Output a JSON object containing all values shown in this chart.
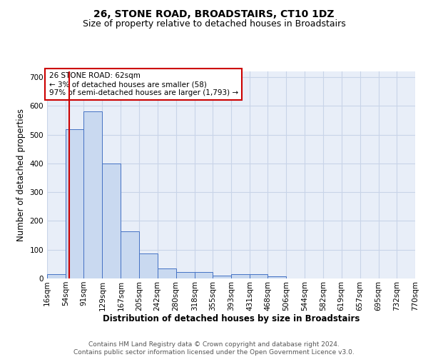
{
  "title": "26, STONE ROAD, BROADSTAIRS, CT10 1DZ",
  "subtitle": "Size of property relative to detached houses in Broadstairs",
  "xlabel": "Distribution of detached houses by size in Broadstairs",
  "ylabel": "Number of detached properties",
  "footer_line1": "Contains HM Land Registry data © Crown copyright and database right 2024.",
  "footer_line2": "Contains public sector information licensed under the Open Government Licence v3.0.",
  "bin_labels": [
    "16sqm",
    "54sqm",
    "91sqm",
    "129sqm",
    "167sqm",
    "205sqm",
    "242sqm",
    "280sqm",
    "318sqm",
    "355sqm",
    "393sqm",
    "431sqm",
    "468sqm",
    "506sqm",
    "544sqm",
    "582sqm",
    "619sqm",
    "657sqm",
    "695sqm",
    "732sqm",
    "770sqm"
  ],
  "bar_values": [
    15,
    520,
    580,
    400,
    163,
    88,
    35,
    22,
    22,
    10,
    14,
    14,
    7,
    0,
    0,
    0,
    0,
    0,
    0,
    0
  ],
  "bin_edges": [
    16,
    54,
    91,
    129,
    167,
    205,
    242,
    280,
    318,
    355,
    393,
    431,
    468,
    506,
    544,
    582,
    619,
    657,
    695,
    732,
    770
  ],
  "bar_facecolor": "#c9d9f0",
  "bar_edgecolor": "#4472c4",
  "vline_x": 62,
  "vline_color": "#cc0000",
  "annotation_text": "26 STONE ROAD: 62sqm\n← 3% of detached houses are smaller (58)\n97% of semi-detached houses are larger (1,793) →",
  "annotation_box_edgecolor": "#cc0000",
  "ylim": [
    0,
    720
  ],
  "yticks": [
    0,
    100,
    200,
    300,
    400,
    500,
    600,
    700
  ],
  "grid_color": "#c8d4e8",
  "bg_color": "#e8eef8",
  "title_fontsize": 10,
  "subtitle_fontsize": 9,
  "axis_label_fontsize": 8.5,
  "tick_fontsize": 7.5,
  "footer_fontsize": 6.5
}
